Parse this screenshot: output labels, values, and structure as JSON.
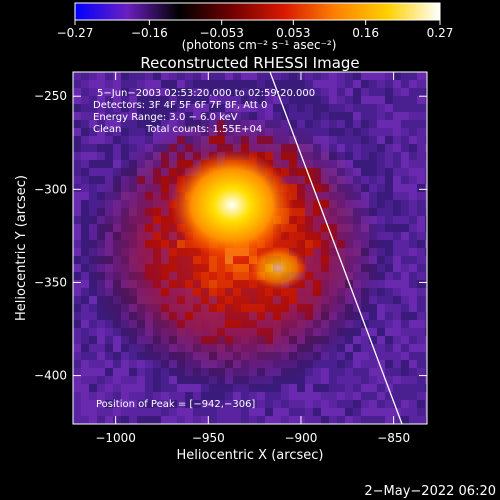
{
  "colorbar": {
    "ticks": [
      "−0.27",
      "−0.16",
      "−0.053",
      "0.053",
      "0.16",
      "0.27"
    ],
    "values": [
      -0.27,
      -0.16,
      -0.053,
      0.053,
      0.16,
      0.27
    ],
    "min": -0.27,
    "max": 0.27,
    "unit_label": "(photons cm⁻² s⁻¹ asec⁻²)",
    "colors": [
      "#0000ff",
      "#6a1fc0",
      "#000000",
      "#700000",
      "#d81800",
      "#ff8000",
      "#ffd000",
      "#ffffff"
    ]
  },
  "title": "Reconstructed RHESSI Image",
  "annotations": {
    "time_range": "5−Jun−2003 02:53:20.000 to 02:59:20.000",
    "detectors": "Detectors: 3F 4F 5F 6F 7F 8F, Att 0",
    "energy": "Energy Range: 3.0 − 6.0 keV",
    "method": "Clean",
    "total_counts": "Total counts: 1.55E+04",
    "peak": "Position of Peak = [−942,−306]"
  },
  "x_axis": {
    "title": "Heliocentric X (arcsec)",
    "tick_labels": [
      "−1000",
      "−950",
      "−900",
      "−850"
    ],
    "tick_values": [
      -1000,
      -950,
      -900,
      -850
    ],
    "range": [
      -1023,
      -832
    ]
  },
  "y_axis": {
    "title": "Heliocentric Y (arcsec)",
    "tick_labels": [
      "−250",
      "−300",
      "−350",
      "−400"
    ],
    "tick_values": [
      -250,
      -300,
      -350,
      -400
    ],
    "range": [
      -426,
      -237
    ]
  },
  "map": {
    "peak_position": [
      -942,
      -306
    ],
    "limb_color": "#ffffff",
    "background_level": "negative (purple)",
    "source_color": "yellow-white core, red/orange halo"
  },
  "timestamp": "2−May−2022 06:20"
}
